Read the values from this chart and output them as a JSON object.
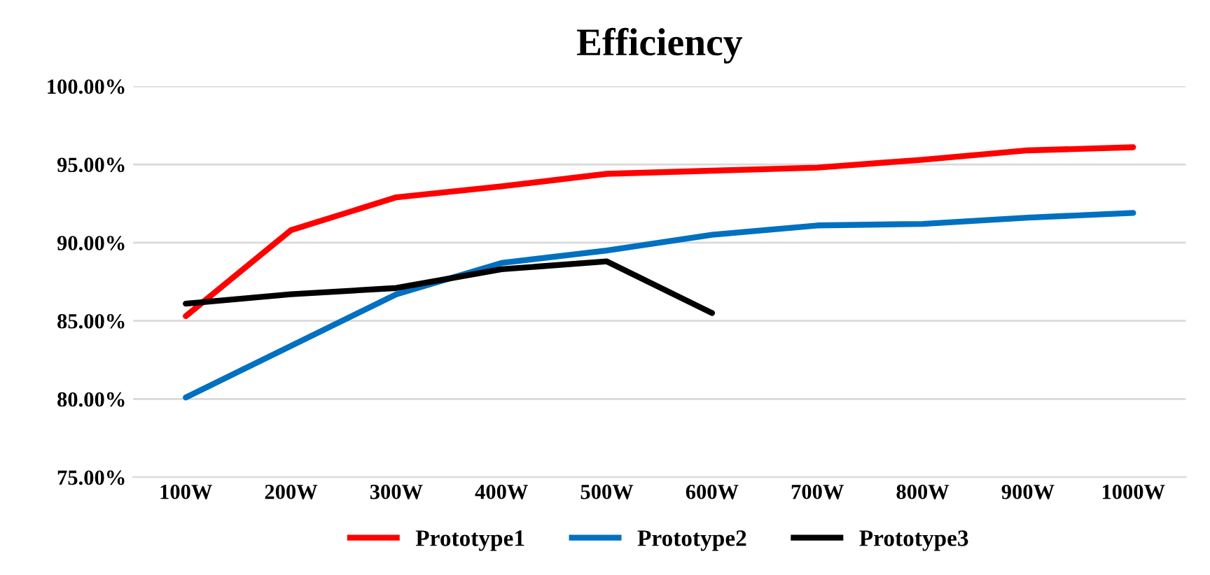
{
  "chart_data": {
    "type": "line",
    "title": "Efficiency",
    "categories": [
      "100W",
      "200W",
      "300W",
      "400W",
      "500W",
      "600W",
      "700W",
      "800W",
      "900W",
      "1000W"
    ],
    "series": [
      {
        "name": "Prototype1",
        "color": "#ff0000",
        "values": [
          85.3,
          90.8,
          92.9,
          93.6,
          94.4,
          94.6,
          94.8,
          95.3,
          95.9,
          96.1
        ]
      },
      {
        "name": "Prototype2",
        "color": "#0070c0",
        "values": [
          80.1,
          83.4,
          86.7,
          88.7,
          89.5,
          90.5,
          91.1,
          91.2,
          91.6,
          91.9
        ]
      },
      {
        "name": "Prototype3",
        "color": "#000000",
        "values": [
          86.1,
          86.7,
          87.1,
          88.3,
          88.8,
          85.5,
          null,
          null,
          null,
          null
        ]
      }
    ],
    "ylim": [
      75,
      100
    ],
    "yticks": [
      {
        "value": 75,
        "label": "75.00%"
      },
      {
        "value": 80,
        "label": "80.00%"
      },
      {
        "value": 85,
        "label": "85.00%"
      },
      {
        "value": 90,
        "label": "90.00%"
      },
      {
        "value": 95,
        "label": "95.00%"
      },
      {
        "value": 100,
        "label": "100.00%"
      }
    ],
    "grid": "y",
    "legend": "bottom",
    "marker": "none",
    "line_style": "solid"
  }
}
